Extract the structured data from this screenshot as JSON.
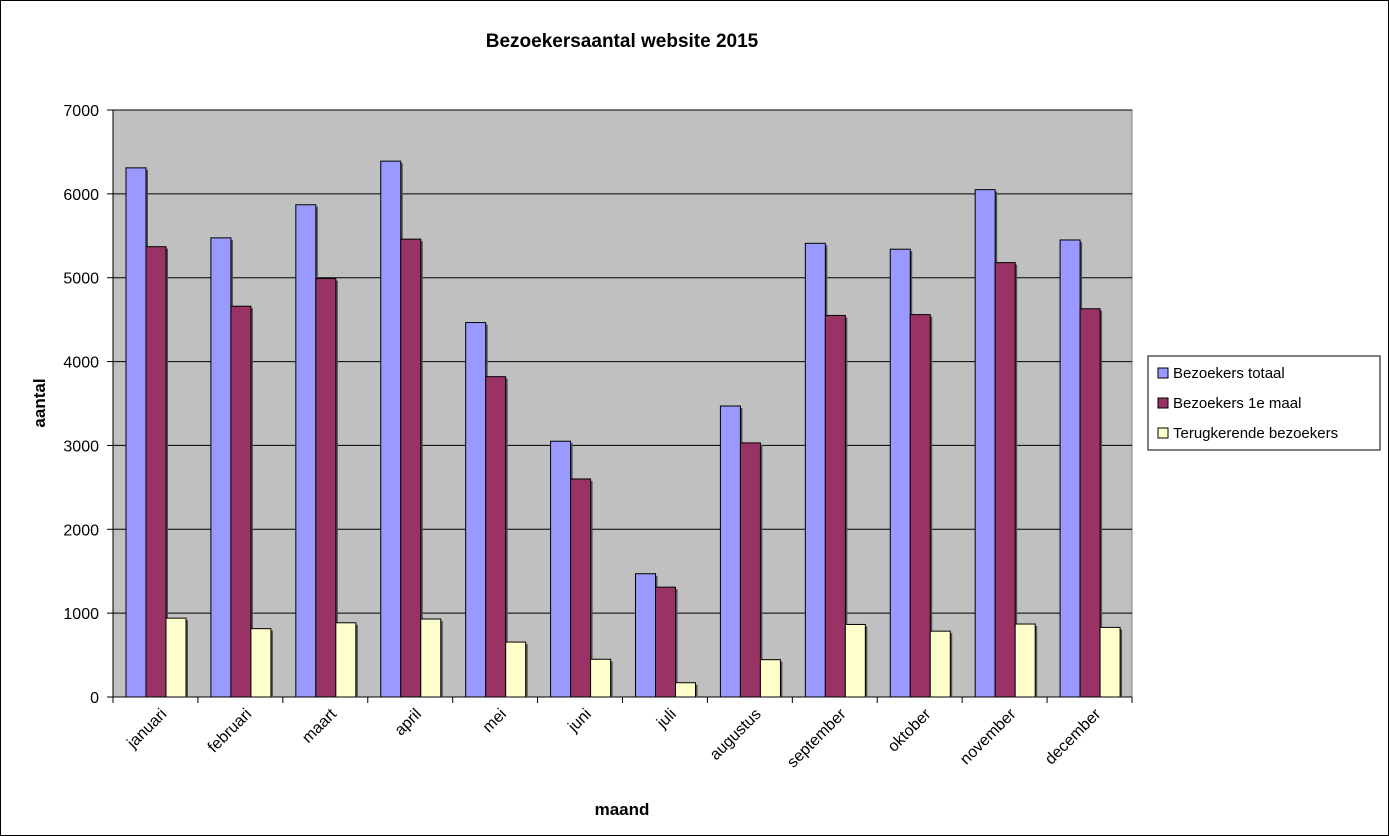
{
  "chart_data": {
    "type": "bar",
    "title": "Bezoekersaantal website 2015",
    "xlabel": "maand",
    "ylabel": "aantal",
    "ylim": [
      0,
      7000
    ],
    "yticks": [
      0,
      1000,
      2000,
      3000,
      4000,
      5000,
      6000,
      7000
    ],
    "grid": true,
    "legend_position": "right",
    "categories": [
      "januari",
      "februari",
      "maart",
      "april",
      "mei",
      "juni",
      "juli",
      "augustus",
      "september",
      "oktober",
      "november",
      "december"
    ],
    "series": [
      {
        "name": "Bezoekers totaal",
        "color": "#9999ff",
        "values": [
          6310,
          5475,
          5870,
          6390,
          4465,
          3050,
          1470,
          3470,
          5410,
          5340,
          6050,
          5450
        ]
      },
      {
        "name": "Bezoekers 1e maal",
        "color": "#993366",
        "values": [
          5370,
          4660,
          4990,
          5460,
          3820,
          2600,
          1310,
          3030,
          4550,
          4560,
          5180,
          4630
        ]
      },
      {
        "name": "Terugkerende bezoekers",
        "color": "#ffffcc",
        "values": [
          940,
          815,
          885,
          930,
          655,
          450,
          170,
          445,
          865,
          785,
          870,
          830
        ]
      }
    ]
  }
}
